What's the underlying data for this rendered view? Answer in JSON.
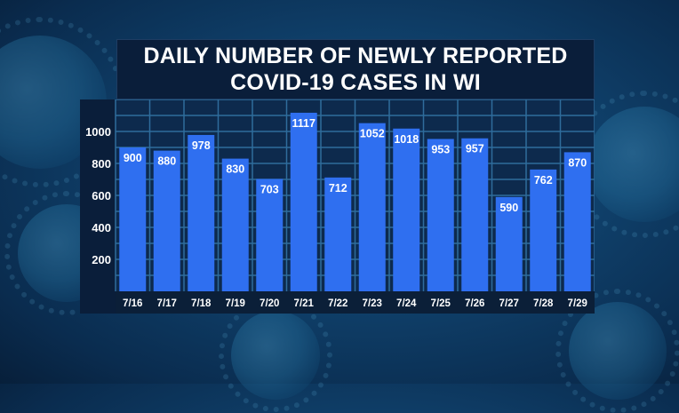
{
  "chart_data": {
    "type": "bar",
    "title_lines": [
      "DAILY NUMBER OF NEWLY REPORTED",
      "COVID-19 CASES IN WI"
    ],
    "categories": [
      "7/16",
      "7/17",
      "7/18",
      "7/19",
      "7/20",
      "7/21",
      "7/22",
      "7/23",
      "7/24",
      "7/25",
      "7/26",
      "7/27",
      "7/28",
      "7/29"
    ],
    "values": [
      900,
      880,
      978,
      830,
      703,
      1117,
      712,
      1052,
      1018,
      953,
      957,
      590,
      762,
      870
    ],
    "y_ticks": [
      200,
      400,
      600,
      800,
      1000
    ],
    "ylim": [
      0,
      1200
    ],
    "grid": true,
    "colors": {
      "bar": "#2f6ff0",
      "grid": "#2f6c9c",
      "panel": "#0a1e3a",
      "text": "#ffffff"
    }
  }
}
